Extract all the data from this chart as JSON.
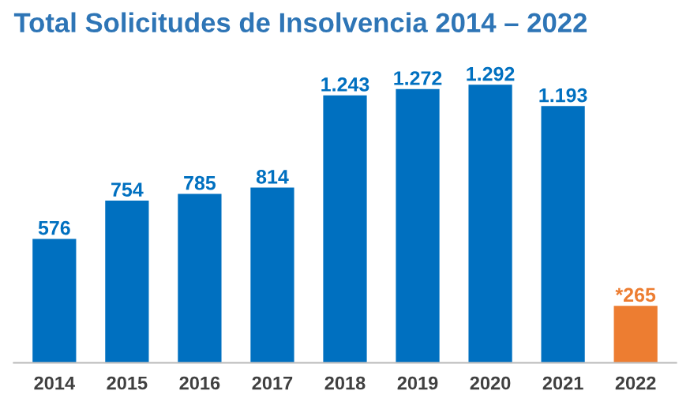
{
  "chart_data": {
    "type": "bar",
    "title": "Total Solicitudes de Insolvencia 2014 – 2022",
    "categories": [
      "2014",
      "2015",
      "2016",
      "2017",
      "2018",
      "2019",
      "2020",
      "2021",
      "2022"
    ],
    "values": [
      576,
      754,
      785,
      814,
      1243,
      1272,
      1292,
      1193,
      265
    ],
    "colors": [
      "#0070c0",
      "#0070c0",
      "#0070c0",
      "#0070c0",
      "#0070c0",
      "#0070c0",
      "#0070c0",
      "#0070c0",
      "#ed7d31"
    ],
    "value_labels": [
      "576",
      "754",
      "785",
      "814",
      "1.243",
      "1.272",
      "1.292",
      "1.193",
      "*265"
    ],
    "grid": false,
    "legend": false
  }
}
